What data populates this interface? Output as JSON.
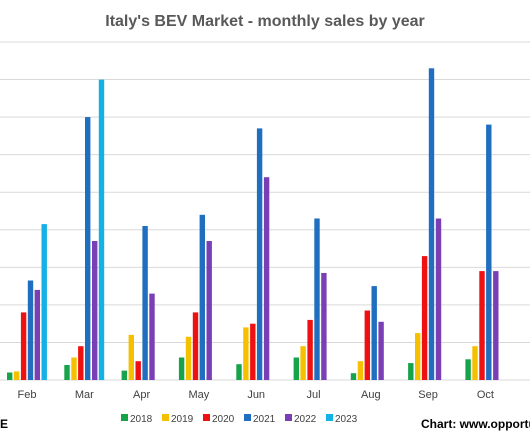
{
  "chart_data": {
    "type": "bar",
    "title": "Italy's BEV Market - monthly sales by year",
    "xlabel": "",
    "ylabel": "",
    "ylim": [
      0,
      9000
    ],
    "grid": true,
    "legend_position": "bottom",
    "categories": [
      "Feb",
      "Mar",
      "Apr",
      "May",
      "Jun",
      "Jul",
      "Aug",
      "Sep",
      "Oct"
    ],
    "series": [
      {
        "name": "2018",
        "color": "#16a34a",
        "values": [
          200,
          400,
          250,
          600,
          420,
          600,
          180,
          450,
          550
        ]
      },
      {
        "name": "2019",
        "color": "#f5c000",
        "values": [
          230,
          600,
          1200,
          1150,
          1400,
          900,
          500,
          1250,
          900
        ]
      },
      {
        "name": "2020",
        "color": "#ee1111",
        "values": [
          1800,
          900,
          500,
          1800,
          1500,
          1600,
          1850,
          3300,
          2900
        ]
      },
      {
        "name": "2021",
        "color": "#1f6ebf",
        "values": [
          2650,
          7000,
          4100,
          4400,
          6700,
          4300,
          2500,
          8300,
          6800
        ]
      },
      {
        "name": "2022",
        "color": "#7b3fb5",
        "values": [
          2400,
          3700,
          2300,
          3700,
          5400,
          2850,
          1550,
          4300,
          2900
        ]
      },
      {
        "name": "2023",
        "color": "#14b1e7",
        "values": [
          4150,
          8000,
          null,
          null,
          null,
          null,
          null,
          null,
          null
        ]
      }
    ]
  },
  "header": {
    "title": "Italy's BEV Market - monthly sales by year"
  },
  "footer": {
    "left_fragment": "E",
    "credit": "Chart: www.opportu"
  }
}
